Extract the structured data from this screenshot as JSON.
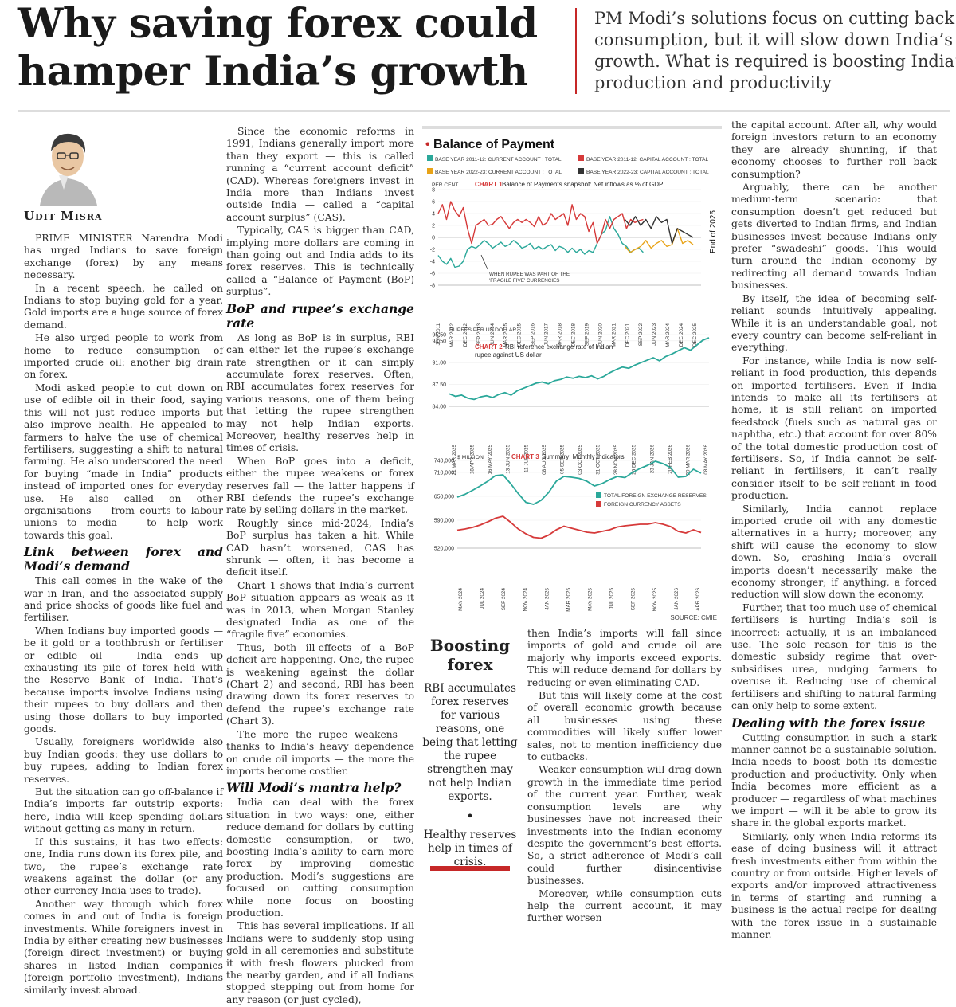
{
  "headline": {
    "line1": "Why saving forex could",
    "line2": "hamper India’s growth"
  },
  "standfirst": "PM Modi’s solutions focus on cutting back consumption, but it will slow down India’s growth. What is required is boosting India’s production and productivity",
  "author": "Udit Misra",
  "col1": [
    "PRIME MINISTER Narendra Modi has urged Indians to save foreign exchange (forex) by any means necessary.",
    "In a recent speech, he called on Indians to stop buying gold for a year. Gold imports are a huge source of forex demand.",
    "He also urged people to work from home to reduce consumption of imported crude oil: another big drain on forex.",
    "Modi asked people to cut down on use of edible oil in their food, saying this will not just reduce imports but also improve health. He appealed to farmers to halve the use of chemical fertilisers, suggesting a shift to natural farming. He also underscored the need for buying “made in India” products instead of imported ones for everyday use. He also called on other organisations — from courts to labour unions to media — to help work towards this goal."
  ],
  "h_link": "Link between forex and Modi’s demand",
  "col1b": [
    "This call comes in the wake of the war in Iran, and the associated supply and price shocks of goods like fuel and fertiliser.",
    "When Indians buy imported goods — be it gold or a toothbrush or fertiliser or edible oil — India ends up exhausting its pile of forex held with the Reserve Bank of India. That’s because imports involve Indians using their rupees to buy dollars and then using those dollars to buy imported goods.",
    "Usually, foreigners worldwide also buy Indian goods: they use dollars to buy rupees, adding to Indian forex reserves.",
    "But the situation can go off-balance if India’s imports far outstrip exports: here, India will keep spending dollars without getting as many in return.",
    "If this sustains, it has two effects: one, India runs down its forex pile, and two, the rupee’s exchange rate weakens against the dollar (or any other currency India uses to trade).",
    "Another way through which forex comes in and out of India is foreign investments. While foreigners invest in India by either creating new businesses (foreign direct investment) or buying shares in listed Indian companies (foreign portfolio investment), Indians similarly invest abroad."
  ],
  "col2": [
    "Since the economic reforms in 1991, Indians generally import more than they export — this is called running a “current account deficit” (CAD). Whereas foreigners invest in India more than Indians invest outside India — called a “capital account surplus” (CAS).",
    "Typically, CAS is bigger than CAD, implying more dollars are coming in than going out and India adds to its forex reserves. This is technically called a “Balance of Payment (BoP) surplus”."
  ],
  "h_bop": "BoP and rupee’s exchange rate",
  "col2b": [
    "As long as BoP is in surplus, RBI can either let the rupee’s exchange rate strengthen or it can simply accumulate forex reserves. Often, RBI accumulates forex reserves for various reasons, one of them being that letting the rupee strengthen may not help Indian exports. Moreover, healthy reserves help in times of crisis.",
    "When BoP goes into a deficit, either the rupee weakens or forex reserves fall — the latter happens if RBI defends the rupee’s exchange rate by selling dollars in the market.",
    "Roughly since mid-2024, India’s BoP surplus has taken a hit. While CAD hasn’t worsened, CAS has shrunk — often, it has become a deficit itself.",
    "Chart 1 shows that India’s current BoP situation appears as weak as it was in 2013, when Morgan Stanley designated India as one of the “fragile five” economies.",
    "Thus, both ill-effects of a BoP deficit are happening. One, the rupee is weakening against the dollar (Chart 2) and second, RBI has been drawing down its forex reserves to defend the rupee’s exchange rate (Chart 3).",
    "The more the rupee weakens — thanks to India’s heavy dependence on crude oil imports — the more the imports become costlier."
  ],
  "h_mantra": "Will Modi’s mantra help?",
  "col2c": [
    "India can deal with the forex situation in two ways: one, either reduce demand for dollars by cutting domestic consumption, or two, boosting India’s ability to earn more forex by improving domestic production. Modi’s suggestions are focused on cutting consumption while none focus on boosting production.",
    "This has several implications. If all Indians were to suddenly stop using gold in all ceremonies and substitute it with fresh flowers plucked from the nearby garden, and if all Indians stopped stepping out from home for any reason (or just cycled),"
  ],
  "col3b": [
    "then India’s imports will fall since imports of gold and crude oil are majorly why imports exceed exports. This will reduce demand for dollars by reducing or even eliminating CAD.",
    "But this will likely come at the cost of overall economic growth because all businesses using these commodities will likely suffer lower sales, not to mention inefficiency due to cutbacks.",
    "Weaker consumption will drag down growth in the immediate time period of the current year. Further, weak consumption levels are why businesses have not increased their investments into the Indian economy despite the government’s best efforts. So, a strict adherence of Modi’s call could further disincentivise businesses.",
    "Moreover, while consumption cuts help the current account, it may further worsen"
  ],
  "col4": [
    "the capital account. After all, why would foreign investors return to an economy they are already shunning, if that economy chooses to further roll back consumption?",
    "Arguably, there can be another medium-term scenario: that consumption doesn’t get reduced but gets diverted to Indian firms, and Indian businesses invest because Indians only prefer “swadeshi” goods. This would turn around the Indian economy by redirecting all demand towards Indian businesses.",
    "By itself, the idea of becoming self-reliant sounds intuitively appealing. While it is an understandable goal, not every country can become self-reliant in everything.",
    "For instance, while India is now self-reliant in food production, this depends on imported fertilisers. Even if India intends to make all its fertilisers at home, it is still reliant on imported feedstock (fuels such as natural gas or naphtha, etc.) that account for over 80% of the total domestic production cost of fertilisers. So, if India cannot be self-reliant in fertilisers, it can’t really consider itself to be self-reliant in food production.",
    "Similarly, India cannot replace imported crude oil with any domestic alternatives in a hurry; moreover, any shift will cause the economy to slow down. So, crashing India’s overall imports doesn’t necessarily make the economy stronger; if anything, a forced reduction will slow down the economy.",
    "Further, that too much use of chemical fertilisers is hurting India’s soil is incorrect: actually, it is an imbalanced use. The sole reason for this is the domestic subsidy regime that over-subsidises urea, nudging farmers to overuse it. Reducing use of chemical fertilisers and shifting to natural farming can only help to some extent."
  ],
  "h_deal": "Dealing with the forex issue",
  "col4b": [
    "Cutting consumption in such a stark manner cannot be a sustainable solution. India needs to boost both its domestic production and productivity. Only when India becomes more efficient as a producer — regardless of what machines we import — will it be able to grow its share in the global exports market.",
    "Similarly, only when India reforms its ease of doing business will it attract fresh investments either from within the country or from outside. Higher levels of exports and/or improved attractiveness in terms of starting and running a business is the actual recipe for dealing with the forex issue in a sustainable manner."
  ],
  "boost": {
    "title": "Boosting forex",
    "q1": "RBI accumulates forex reserves for various reasons, one being that letting the rupee strengthen may not help Indian exports.",
    "dot": "•",
    "q2": "Healthy reserves help in times of crisis."
  },
  "chart_panel_title": "Balance of Payment",
  "source": "SOURCE: CMIE",
  "chart_data": [
    {
      "type": "line",
      "label": "CHART 1",
      "title": "Balance of Payments snapshot: Net inflows as % of GDP",
      "ylabel": "PER CENT",
      "ylim": [
        -8,
        8
      ],
      "yticks": [
        8,
        6,
        4,
        2,
        0,
        -2,
        -4,
        -6,
        -8
      ],
      "xticks": [
        "JUN 2011",
        "MAR 2012",
        "DEC 2012",
        "SEP 2013",
        "JUN 2014",
        "MAR 2015",
        "DEC 2015",
        "SEP 2016",
        "JUN 2017",
        "MAR 2018",
        "DEC 2018",
        "SEP 2019",
        "JUN 2020",
        "MAR 2021",
        "DEC 2021",
        "SEP 2022",
        "JUN 2023",
        "MAR 2024",
        "DEC 2024",
        "DEC 2025"
      ],
      "annotation": "WHEN RUPEE WAS PART OF THE 'FRAGILE FIVE' CURRENCIES",
      "side_label": "End of 2025",
      "series": [
        {
          "name": "BASE YEAR 2011-12: CURRENT ACCOUNT : TOTAL",
          "color": "#2ba89a",
          "values": [
            -3,
            -4,
            -4.5,
            -3.5,
            -5,
            -4.8,
            -4,
            -2,
            -1.5,
            -1.8,
            -1.2,
            -0.5,
            -1,
            -1.8,
            -1.3,
            -0.8,
            -1.5,
            -1.2,
            -0.5,
            -1,
            -1.8,
            -1.5,
            -1,
            -2,
            -1.5,
            -2,
            -1.5,
            -1.2,
            -2.2,
            -1.5,
            -1.8,
            -2.5,
            -1.8,
            -2.5,
            -2,
            -2.8,
            -2.2,
            -2.5,
            -1,
            0.5,
            1.2,
            3.5,
            1.5,
            0.5,
            -1,
            -1.5,
            -2.5,
            -2,
            -1.8,
            -2.5
          ]
        },
        {
          "name": "BASE YEAR 2011-12: CAPITAL ACCOUNT : TOTAL",
          "color": "#d63a3a",
          "values": [
            4,
            5.5,
            3,
            6,
            4.5,
            3.5,
            5,
            1.5,
            -1,
            2,
            2.5,
            3,
            2,
            2.2,
            3,
            3.5,
            2.5,
            1.5,
            2.5,
            3,
            2.5,
            3,
            2.5,
            1.8,
            3.5,
            2,
            2.5,
            4,
            3,
            3.5,
            4,
            2,
            5.5,
            3,
            4,
            3.5,
            1,
            2.5,
            -1,
            0.5,
            3,
            1.5,
            3,
            3.5,
            4,
            1.5,
            3,
            2.5,
            2.8,
            3
          ]
        },
        {
          "name": "BASE YEAR 2022-23: CURRENT ACCOUNT : TOTAL",
          "color": "#e8a317",
          "values": [
            -1.5,
            -2.5,
            -2,
            -1.5,
            -0.5,
            -1.8,
            -1,
            -0.5,
            -1.5,
            -1.2,
            1.5,
            -1,
            -0.5,
            -1.2
          ]
        },
        {
          "name": "BASE YEAR 2022-23: CAPITAL ACCOUNT : TOTAL",
          "color": "#333333",
          "values": [
            3,
            2,
            3.5,
            2,
            3,
            1.5,
            3.5,
            2.5,
            3,
            -1,
            1.5,
            1,
            0.5,
            0
          ]
        }
      ]
    },
    {
      "type": "line",
      "label": "CHART 2",
      "title": "RBI reference exchange rate of Indian rupee against US dollar",
      "ylabel": "RUPEES PER US DOLLAR",
      "ylim": [
        84.0,
        95.5
      ],
      "yticks": [
        95.5,
        94.5,
        91.0,
        87.5,
        84.0
      ],
      "xticks": [
        "21 MAR 2025",
        "18 APR 2025",
        "16 MAY 2025",
        "13 JUN 2025",
        "11 JUL 2025",
        "08 AUG 2025",
        "05 SEP 2025",
        "03 OCT 2025",
        "31 OCT 2025",
        "28 NOV 2025",
        "26 DEC 2025",
        "23 JAN 2026",
        "20 FEB 2026",
        "20 MAR 2026",
        "08 MAY 2026"
      ],
      "series": [
        {
          "name": "Rupees per US dollar",
          "color": "#2ba89a",
          "values": [
            86.0,
            85.6,
            85.8,
            85.3,
            85.1,
            85.5,
            85.7,
            85.4,
            85.9,
            86.2,
            85.8,
            86.5,
            86.9,
            87.3,
            87.7,
            87.9,
            87.6,
            88.1,
            88.3,
            88.7,
            88.5,
            88.8,
            88.6,
            88.9,
            88.4,
            88.8,
            89.4,
            89.9,
            90.3,
            90.1,
            90.6,
            91.0,
            91.4,
            91.8,
            91.3,
            92.0,
            92.4,
            92.9,
            93.4,
            93.0,
            93.8,
            94.6,
            95.0
          ]
        }
      ]
    },
    {
      "type": "line",
      "label": "CHART 3",
      "title": "Summary: Monthly Indicators",
      "ylabel": "$ MILLION",
      "ylim": [
        520000,
        740000
      ],
      "yticks": [
        "740,000",
        "710,000",
        "650,000",
        "590,000",
        "520,000"
      ],
      "xticks": [
        "MAY 2024",
        "JUL 2024",
        "SEP 2024",
        "NOV 2024",
        "JAN 2025",
        "MAR 2025",
        "MAY 2025",
        "JUL 2025",
        "SEP 2025",
        "NOV 2025",
        "JAN 2026",
        "APR 2026"
      ],
      "series": [
        {
          "name": "TOTAL FOREIGN EXCHANGE RESERVES",
          "color": "#2ba89a",
          "values": [
            648000,
            655000,
            665000,
            676000,
            688000,
            702000,
            704000,
            682000,
            657000,
            635000,
            630000,
            640000,
            660000,
            688000,
            700000,
            698000,
            695000,
            688000,
            676000,
            682000,
            692000,
            700000,
            697000,
            710000,
            720000,
            728000,
            738000,
            732000,
            722000,
            698000,
            700000,
            718000,
            708000
          ]
        },
        {
          "name": "FOREIGN CURRENCY ASSETS",
          "color": "#d63a3a",
          "values": [
            565000,
            568000,
            572000,
            578000,
            586000,
            595000,
            600000,
            585000,
            568000,
            556000,
            547000,
            545000,
            553000,
            566000,
            575000,
            570000,
            565000,
            560000,
            558000,
            562000,
            566000,
            573000,
            576000,
            578000,
            580000,
            580000,
            584000,
            580000,
            574000,
            562000,
            558000,
            566000,
            559000
          ]
        }
      ]
    }
  ]
}
